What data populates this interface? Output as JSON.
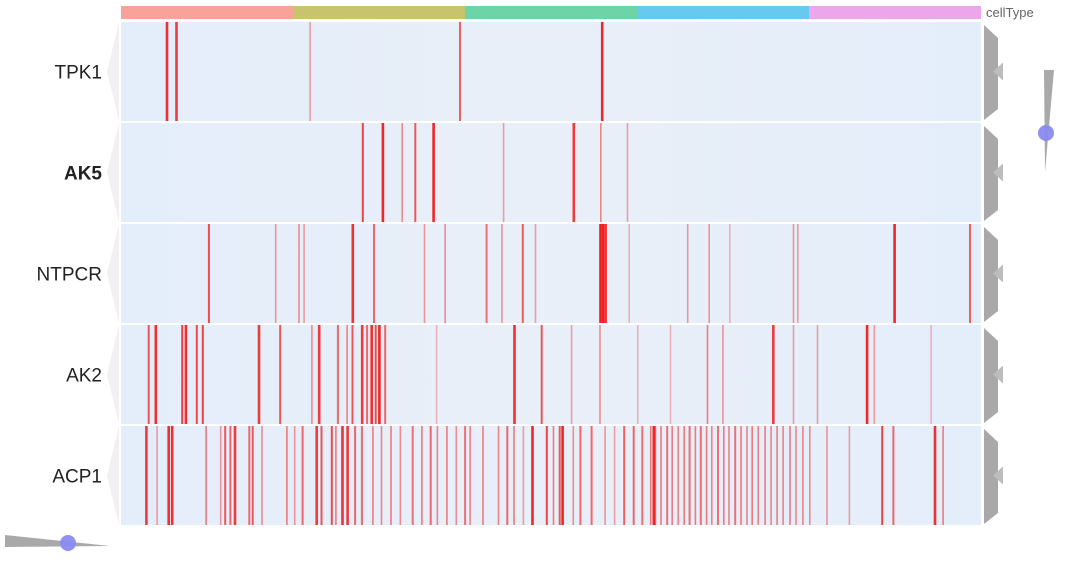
{
  "chart_data": {
    "type": "heatmap",
    "annotation": {
      "title": "cellType",
      "groups": [
        {
          "color": "#F8A29A"
        },
        {
          "color": "#C8C46E"
        },
        {
          "color": "#6CD4A6"
        },
        {
          "color": "#66C9F0"
        },
        {
          "color": "#EBA6EC"
        }
      ]
    },
    "colors": {
      "background": "#E6EEF9",
      "high": "#F01818",
      "grid": "#FFFFFF",
      "dendrogram": "#A9A9A9",
      "slider": "#8A8AF0"
    },
    "rows": [
      {
        "gene": "TPK1",
        "bold": false,
        "stripes": [
          [
            0.052,
            0.9
          ],
          [
            0.063,
            0.85
          ],
          [
            0.219,
            0.3
          ],
          [
            0.393,
            0.65
          ],
          [
            0.558,
            0.95
          ]
        ]
      },
      {
        "gene": "AK5",
        "bold": true,
        "stripes": [
          [
            0.28,
            0.8
          ],
          [
            0.303,
            0.95
          ],
          [
            0.326,
            0.4
          ],
          [
            0.341,
            0.7
          ],
          [
            0.362,
            0.95
          ],
          [
            0.444,
            0.3
          ],
          [
            0.525,
            0.85
          ],
          [
            0.557,
            0.45
          ],
          [
            0.588,
            0.3
          ]
        ]
      },
      {
        "gene": "NTPCR",
        "bold": false,
        "stripes": [
          [
            0.101,
            0.75
          ],
          [
            0.179,
            0.35
          ],
          [
            0.206,
            0.4
          ],
          [
            0.212,
            0.3
          ],
          [
            0.268,
            0.9
          ],
          [
            0.293,
            0.6
          ],
          [
            0.352,
            0.35
          ],
          [
            0.376,
            0.4
          ],
          [
            0.424,
            0.55
          ],
          [
            0.442,
            0.35
          ],
          [
            0.466,
            0.65
          ],
          [
            0.481,
            0.3
          ],
          [
            0.556,
            1.0
          ],
          [
            0.559,
            1.0
          ],
          [
            0.562,
            0.9
          ],
          [
            0.59,
            0.2
          ],
          [
            0.658,
            0.35
          ],
          [
            0.683,
            0.35
          ],
          [
            0.707,
            0.2
          ],
          [
            0.781,
            0.35
          ],
          [
            0.786,
            0.3
          ],
          [
            0.898,
            0.95
          ],
          [
            0.986,
            0.65
          ]
        ]
      },
      {
        "gene": "AK2",
        "bold": false,
        "stripes": [
          [
            0.031,
            0.7
          ],
          [
            0.039,
            0.9
          ],
          [
            0.07,
            0.8
          ],
          [
            0.074,
            0.9
          ],
          [
            0.087,
            0.75
          ],
          [
            0.094,
            0.8
          ],
          [
            0.159,
            0.85
          ],
          [
            0.184,
            0.7
          ],
          [
            0.221,
            0.4
          ],
          [
            0.229,
            0.85
          ],
          [
            0.251,
            0.6
          ],
          [
            0.262,
            0.45
          ],
          [
            0.268,
            0.7
          ],
          [
            0.279,
            0.85
          ],
          [
            0.285,
            0.6
          ],
          [
            0.29,
            0.9
          ],
          [
            0.295,
            0.75
          ],
          [
            0.299,
            0.95
          ],
          [
            0.306,
            0.6
          ],
          [
            0.366,
            0.2
          ],
          [
            0.456,
            0.9
          ],
          [
            0.488,
            0.7
          ],
          [
            0.523,
            0.3
          ],
          [
            0.556,
            0.4
          ],
          [
            0.6,
            0.2
          ],
          [
            0.638,
            0.2
          ],
          [
            0.681,
            0.5
          ],
          [
            0.699,
            0.35
          ],
          [
            0.757,
            0.85
          ],
          [
            0.781,
            0.3
          ],
          [
            0.809,
            0.3
          ],
          [
            0.866,
            0.95
          ],
          [
            0.875,
            0.3
          ],
          [
            0.941,
            0.2
          ]
        ]
      },
      {
        "gene": "ACP1",
        "bold": false,
        "stripes": [
          [
            0.028,
            0.85
          ],
          [
            0.041,
            0.3
          ],
          [
            0.054,
            0.9
          ],
          [
            0.058,
            0.9
          ],
          [
            0.098,
            0.5
          ],
          [
            0.115,
            0.35
          ],
          [
            0.12,
            0.7
          ],
          [
            0.126,
            0.6
          ],
          [
            0.131,
            0.85
          ],
          [
            0.148,
            0.6
          ],
          [
            0.152,
            0.7
          ],
          [
            0.163,
            0.4
          ],
          [
            0.192,
            0.5
          ],
          [
            0.201,
            0.35
          ],
          [
            0.21,
            0.6
          ],
          [
            0.226,
            0.85
          ],
          [
            0.232,
            0.7
          ],
          [
            0.244,
            0.75
          ],
          [
            0.249,
            0.5
          ],
          [
            0.256,
            0.9
          ],
          [
            0.262,
            0.85
          ],
          [
            0.271,
            0.6
          ],
          [
            0.279,
            0.6
          ],
          [
            0.292,
            0.5
          ],
          [
            0.302,
            0.45
          ],
          [
            0.313,
            0.5
          ],
          [
            0.324,
            0.4
          ],
          [
            0.338,
            0.55
          ],
          [
            0.349,
            0.5
          ],
          [
            0.359,
            0.6
          ],
          [
            0.367,
            0.45
          ],
          [
            0.378,
            0.5
          ],
          [
            0.389,
            0.4
          ],
          [
            0.399,
            0.55
          ],
          [
            0.405,
            0.45
          ],
          [
            0.42,
            0.5
          ],
          [
            0.438,
            0.45
          ],
          [
            0.448,
            0.6
          ],
          [
            0.456,
            0.5
          ],
          [
            0.467,
            0.3
          ],
          [
            0.477,
            0.95
          ],
          [
            0.494,
            0.8
          ],
          [
            0.502,
            0.5
          ],
          [
            0.509,
            0.7
          ],
          [
            0.512,
            0.95
          ],
          [
            0.525,
            0.4
          ],
          [
            0.533,
            0.6
          ],
          [
            0.546,
            0.6
          ],
          [
            0.562,
            0.35
          ],
          [
            0.573,
            0.3
          ],
          [
            0.584,
            0.65
          ],
          [
            0.595,
            0.6
          ],
          [
            0.605,
            0.55
          ],
          [
            0.615,
            0.5
          ],
          [
            0.618,
            0.95
          ],
          [
            0.62,
            0.6
          ],
          [
            0.627,
            0.5
          ],
          [
            0.634,
            0.55
          ],
          [
            0.64,
            0.5
          ],
          [
            0.647,
            0.45
          ],
          [
            0.654,
            0.5
          ],
          [
            0.66,
            0.55
          ],
          [
            0.667,
            0.5
          ],
          [
            0.673,
            0.55
          ],
          [
            0.68,
            0.5
          ],
          [
            0.686,
            0.45
          ],
          [
            0.693,
            0.55
          ],
          [
            0.7,
            0.5
          ],
          [
            0.706,
            0.45
          ],
          [
            0.713,
            0.55
          ],
          [
            0.72,
            0.5
          ],
          [
            0.727,
            0.45
          ],
          [
            0.733,
            0.5
          ],
          [
            0.74,
            0.45
          ],
          [
            0.748,
            0.5
          ],
          [
            0.755,
            0.45
          ],
          [
            0.762,
            0.5
          ],
          [
            0.769,
            0.45
          ],
          [
            0.777,
            0.5
          ],
          [
            0.784,
            0.4
          ],
          [
            0.792,
            0.45
          ],
          [
            0.8,
            0.4
          ],
          [
            0.82,
            0.35
          ],
          [
            0.846,
            0.3
          ],
          [
            0.884,
            0.8
          ],
          [
            0.897,
            0.6
          ],
          [
            0.945,
            0.9
          ],
          [
            0.955,
            0.5
          ]
        ]
      }
    ]
  }
}
